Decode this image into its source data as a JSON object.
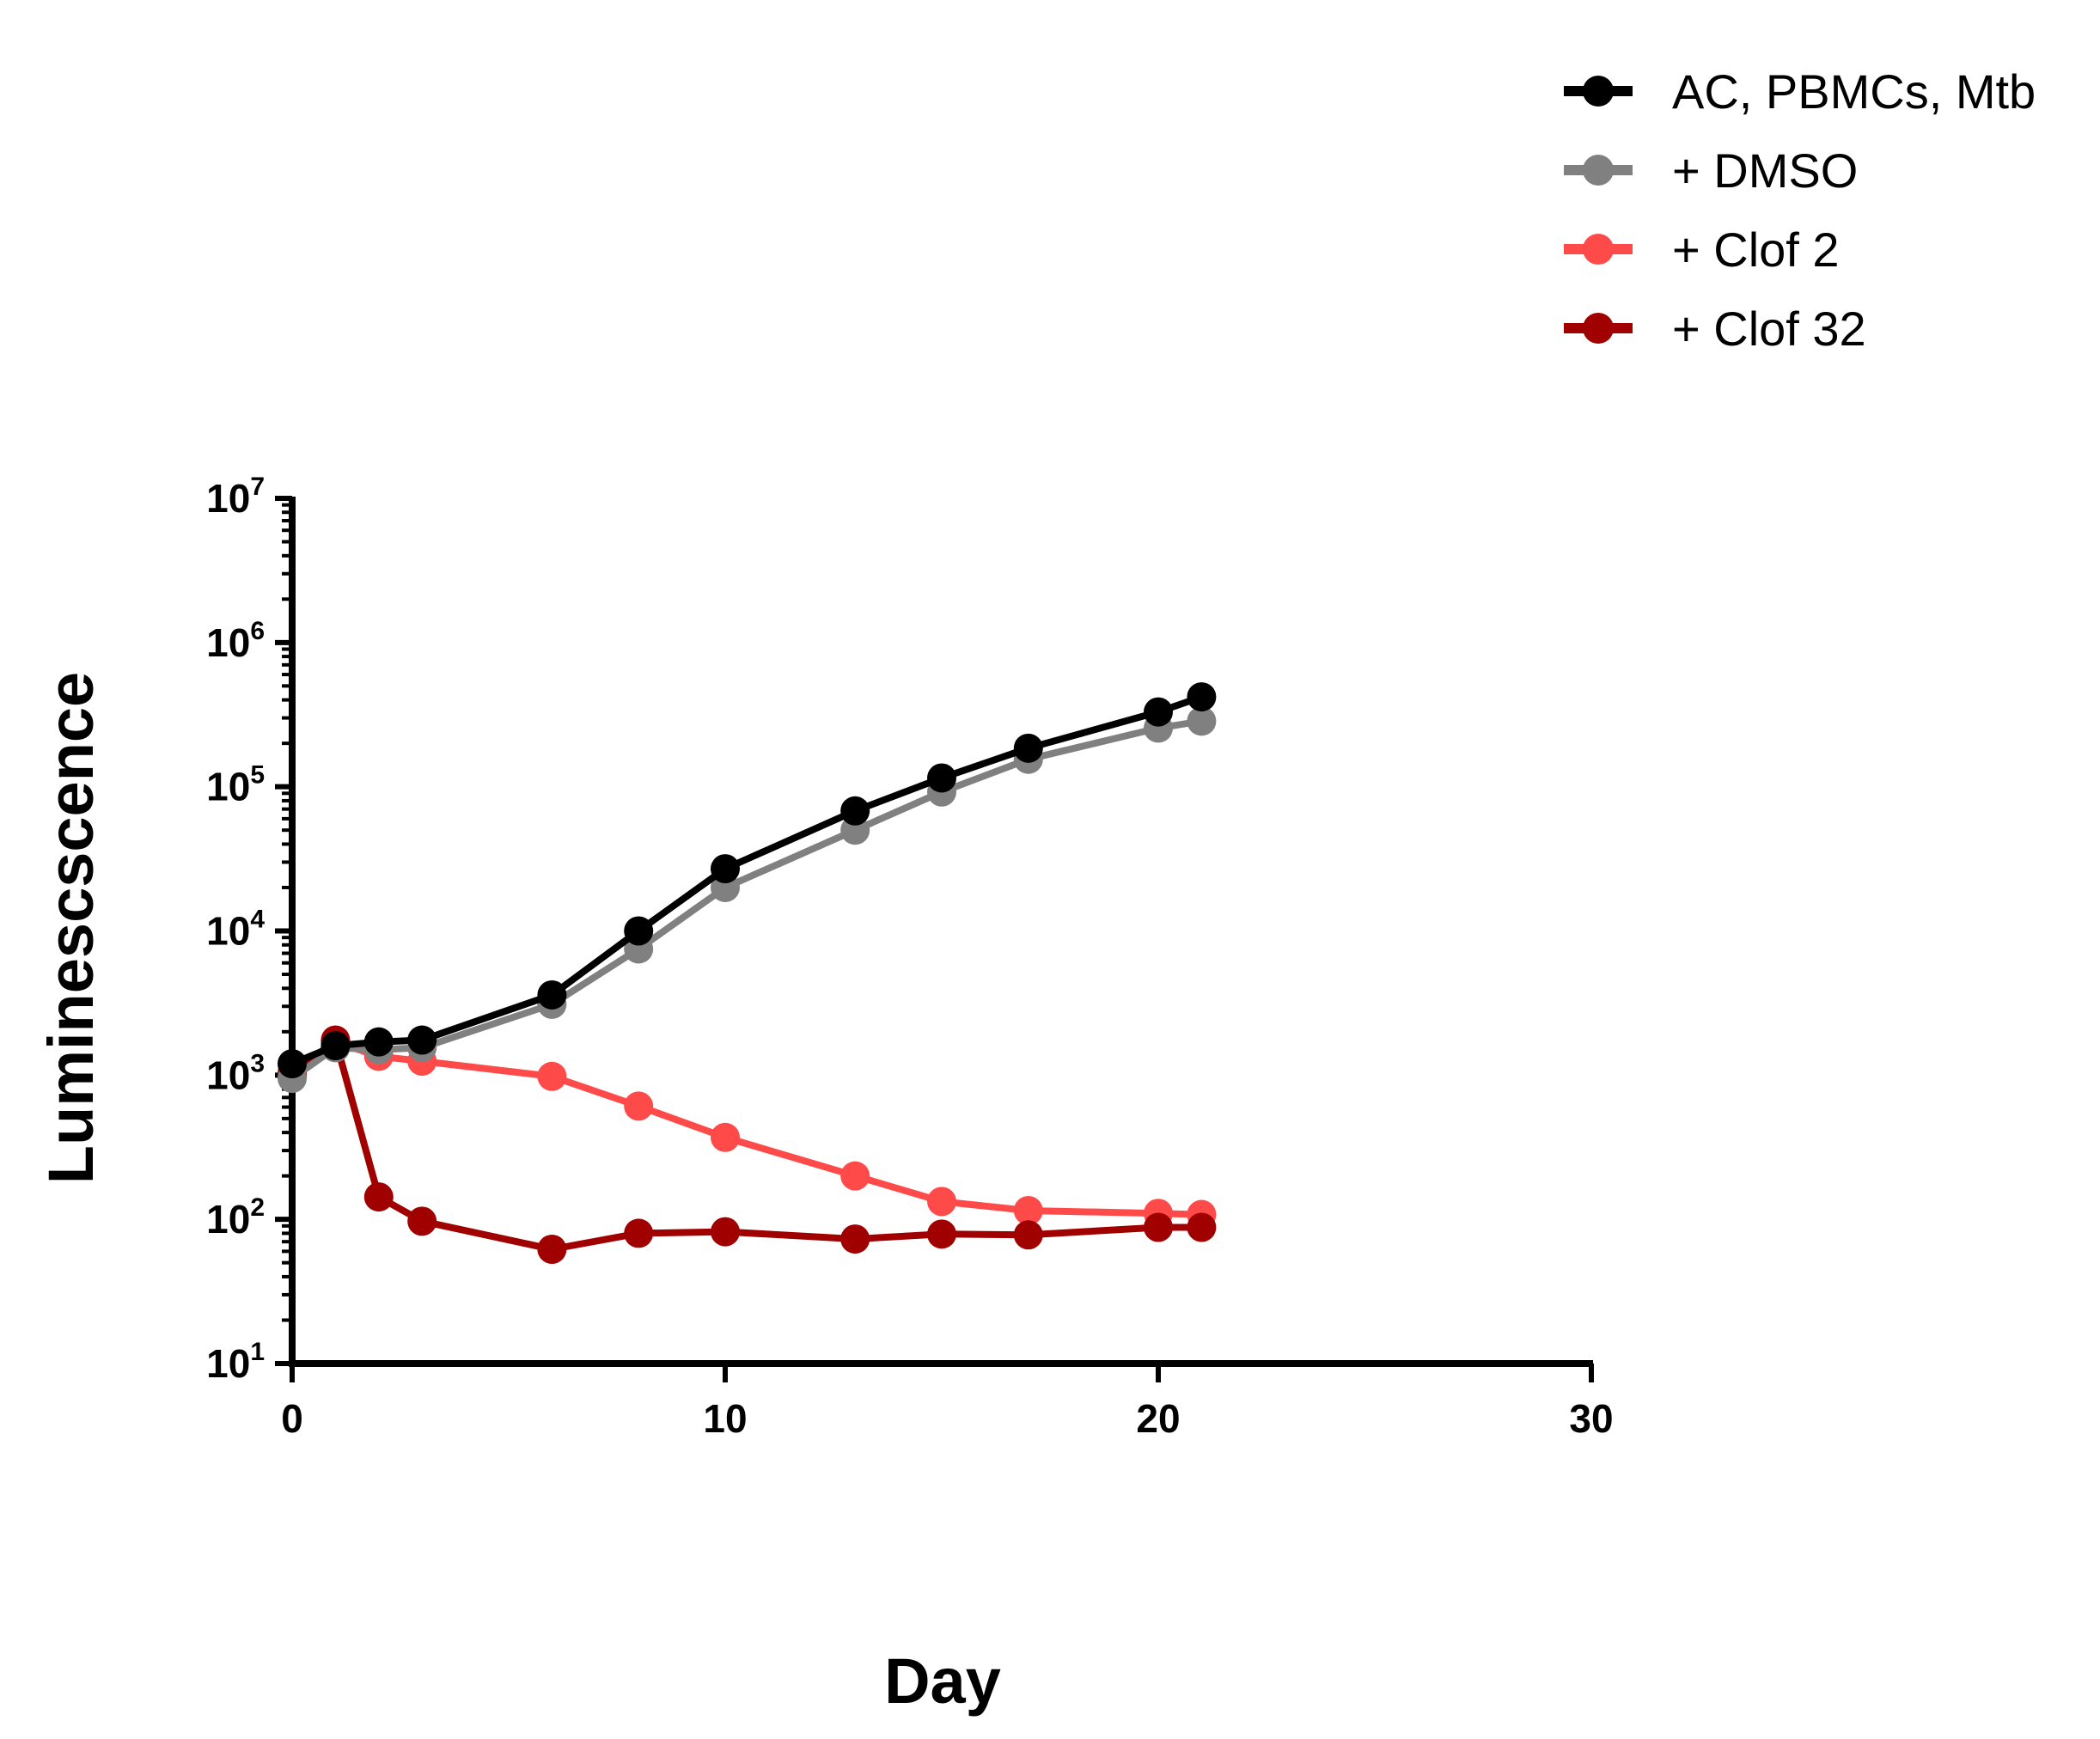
{
  "chart_data": {
    "type": "line",
    "title": "",
    "xlabel": "Day",
    "ylabel": "Luminescscence",
    "xlim": [
      0,
      30
    ],
    "ylim": [
      10,
      10000000
    ],
    "yscale": "log",
    "xticks": [
      0,
      10,
      20,
      30
    ],
    "yticks": [
      {
        "value": 10,
        "base": "10",
        "exp": "1"
      },
      {
        "value": 100,
        "base": "10",
        "exp": "2"
      },
      {
        "value": 1000,
        "base": "10",
        "exp": "3"
      },
      {
        "value": 10000,
        "base": "10",
        "exp": "4"
      },
      {
        "value": 100000,
        "base": "10",
        "exp": "5"
      },
      {
        "value": 1000000,
        "base": "10",
        "exp": "6"
      },
      {
        "value": 10000000,
        "base": "10",
        "exp": "7"
      }
    ],
    "legend_position": "top-right",
    "x": [
      0,
      1,
      2,
      3,
      6,
      8,
      10,
      13,
      15,
      17,
      20,
      21
    ],
    "series": [
      {
        "name": "AC, PBMCs, Mtb",
        "color": "#000000",
        "values": [
          1200,
          1600,
          1700,
          1750,
          3600,
          10000,
          27000,
          68000,
          115000,
          185000,
          330000,
          420000
        ]
      },
      {
        "name": "+ DMSO",
        "color": "#808080",
        "values": [
          950,
          1550,
          1500,
          1550,
          3100,
          7500,
          20000,
          50000,
          92000,
          155000,
          255000,
          285000
        ]
      },
      {
        "name": "+ Clof 2",
        "color": "#ff4a4a",
        "values": [
          1050,
          1700,
          1350,
          1250,
          980,
          610,
          370,
          200,
          133,
          115,
          110,
          108
        ]
      },
      {
        "name": "+ Clof 32",
        "color": "#a00000",
        "values": [
          1000,
          1750,
          143,
          97,
          62,
          80,
          82,
          73,
          79,
          78,
          88,
          88
        ]
      }
    ]
  }
}
